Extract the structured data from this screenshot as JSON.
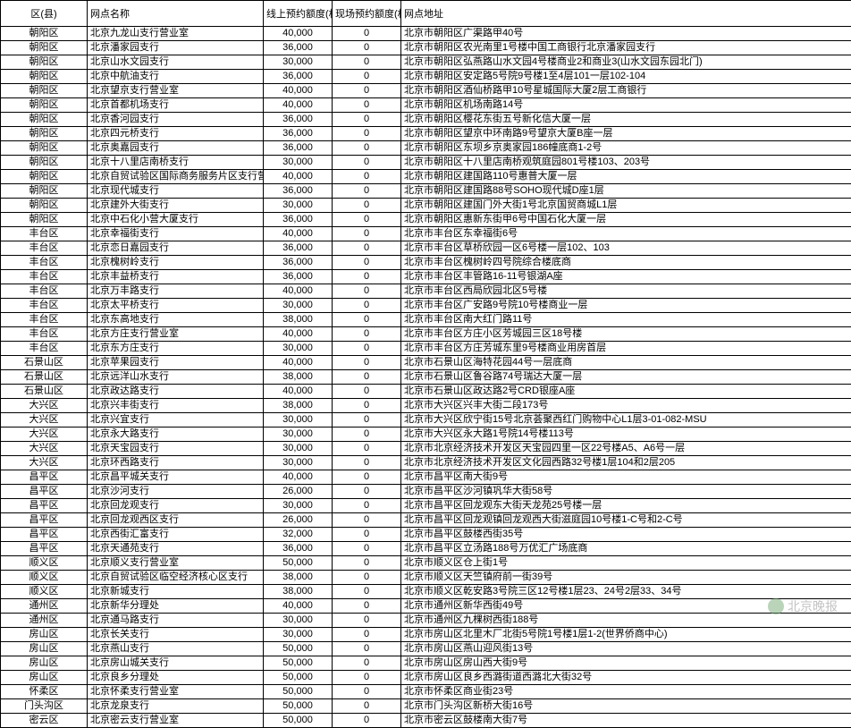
{
  "headers": {
    "district": "区(县)",
    "branch": "网点名称",
    "online": "线上预约额度(枚)",
    "onsite": "现场预约额度(枚)",
    "address": "网点地址"
  },
  "watermark": "北京晚报",
  "rows": [
    {
      "d": "朝阳区",
      "b": "北京九龙山支行营业室",
      "o": "40,000",
      "s": "0",
      "a": "北京市朝阳区广渠路甲40号"
    },
    {
      "d": "朝阳区",
      "b": "北京潘家园支行",
      "o": "36,000",
      "s": "0",
      "a": "北京市朝阳区农光南里1号楼中国工商银行北京潘家园支行"
    },
    {
      "d": "朝阳区",
      "b": "北京山水文园支行",
      "o": "30,000",
      "s": "0",
      "a": "北京市朝阳区弘燕路山水文园4号楼商业2和商业3(山水文园东园北门)"
    },
    {
      "d": "朝阳区",
      "b": "北京中航油支行",
      "o": "36,000",
      "s": "0",
      "a": "北京市朝阳区安定路5号院9号楼1至4层101一层102-104"
    },
    {
      "d": "朝阳区",
      "b": "北京望京支行营业室",
      "o": "40,000",
      "s": "0",
      "a": "北京市朝阳区酒仙桥路甲10号星城国际大厦2层工商银行"
    },
    {
      "d": "朝阳区",
      "b": "北京首都机场支行",
      "o": "40,000",
      "s": "0",
      "a": "北京市朝阳区机场南路14号"
    },
    {
      "d": "朝阳区",
      "b": "北京香河园支行",
      "o": "36,000",
      "s": "0",
      "a": "北京市朝阳区樱花东街五号新化信大厦一层"
    },
    {
      "d": "朝阳区",
      "b": "北京四元桥支行",
      "o": "36,000",
      "s": "0",
      "a": "北京市朝阳区望京中环南路9号望京大厦B座一层"
    },
    {
      "d": "朝阳区",
      "b": "北京奥嘉园支行",
      "o": "36,000",
      "s": "0",
      "a": "北京市朝阳区东坝乡京奥家园186幢底商1-2号"
    },
    {
      "d": "朝阳区",
      "b": "北京十八里店南桥支行",
      "o": "30,000",
      "s": "0",
      "a": "北京市朝阳区十八里店南桥观筑庭园801号楼103、203号"
    },
    {
      "d": "朝阳区",
      "b": "北京自贸试验区国际商务服务片区支行营业室",
      "o": "40,000",
      "s": "0",
      "a": "北京市朝阳区建国路110号惠普大厦一层"
    },
    {
      "d": "朝阳区",
      "b": "北京现代城支行",
      "o": "36,000",
      "s": "0",
      "a": "北京市朝阳区建国路88号SOHO现代城D座1层"
    },
    {
      "d": "朝阳区",
      "b": "北京建外大街支行",
      "o": "30,000",
      "s": "0",
      "a": "北京市朝阳区建国门外大街1号北京国贸商城L1层"
    },
    {
      "d": "朝阳区",
      "b": "北京中石化小营大厦支行",
      "o": "36,000",
      "s": "0",
      "a": "北京市朝阳区惠新东街甲6号中国石化大厦一层"
    },
    {
      "d": "丰台区",
      "b": "北京幸福街支行",
      "o": "40,000",
      "s": "0",
      "a": "北京市丰台区东幸福街6号"
    },
    {
      "d": "丰台区",
      "b": "北京恋日嘉园支行",
      "o": "36,000",
      "s": "0",
      "a": "北京市丰台区草桥欣园一区6号楼一层102、103"
    },
    {
      "d": "丰台区",
      "b": "北京槐树岭支行",
      "o": "36,000",
      "s": "0",
      "a": "北京市丰台区槐树岭四号院综合楼底商"
    },
    {
      "d": "丰台区",
      "b": "北京丰益桥支行",
      "o": "36,000",
      "s": "0",
      "a": "北京市丰台区丰管路16-11号银湖A座"
    },
    {
      "d": "丰台区",
      "b": "北京万丰路支行",
      "o": "40,000",
      "s": "0",
      "a": "北京市丰台区西局欣园北区5号楼"
    },
    {
      "d": "丰台区",
      "b": "北京太平桥支行",
      "o": "30,000",
      "s": "0",
      "a": "北京市丰台区广安路9号院10号楼商业一层"
    },
    {
      "d": "丰台区",
      "b": "北京东高地支行",
      "o": "38,000",
      "s": "0",
      "a": "北京市丰台区南大红门路11号"
    },
    {
      "d": "丰台区",
      "b": "北京方庄支行营业室",
      "o": "40,000",
      "s": "0",
      "a": "北京市丰台区方庄小区芳城园三区18号楼"
    },
    {
      "d": "丰台区",
      "b": "北京东方庄支行",
      "o": "30,000",
      "s": "0",
      "a": "北京市丰台区方庄芳城东里9号楼商业用房首层"
    },
    {
      "d": "石景山区",
      "b": "北京苹果园支行",
      "o": "40,000",
      "s": "0",
      "a": "北京市石景山区海特花园44号一层底商"
    },
    {
      "d": "石景山区",
      "b": "北京远洋山水支行",
      "o": "38,000",
      "s": "0",
      "a": "北京市石景山区鲁谷路74号瑞达大厦一层"
    },
    {
      "d": "石景山区",
      "b": "北京政达路支行",
      "o": "40,000",
      "s": "0",
      "a": "北京市石景山区政达路2号CRD银座A座"
    },
    {
      "d": "大兴区",
      "b": "北京兴丰街支行",
      "o": "38,000",
      "s": "0",
      "a": "北京市大兴区兴丰大街二段173号"
    },
    {
      "d": "大兴区",
      "b": "北京兴宜支行",
      "o": "30,000",
      "s": "0",
      "a": "北京市大兴区欣宁街15号北京荟聚西红门购物中心L1层3-01-082-MSU"
    },
    {
      "d": "大兴区",
      "b": "北京永大路支行",
      "o": "30,000",
      "s": "0",
      "a": "北京市大兴区永大路1号院14号楼113号"
    },
    {
      "d": "大兴区",
      "b": "北京天宝园支行",
      "o": "30,000",
      "s": "0",
      "a": "北京市北京经济技术开发区天宝园四里一区22号楼A5、A6号一层"
    },
    {
      "d": "大兴区",
      "b": "北京环西路支行",
      "o": "30,000",
      "s": "0",
      "a": "北京市北京经济技术开发区文化园西路32号楼1层104和2层205"
    },
    {
      "d": "昌平区",
      "b": "北京昌平城关支行",
      "o": "40,000",
      "s": "0",
      "a": "北京市昌平区南大街9号"
    },
    {
      "d": "昌平区",
      "b": "北京沙河支行",
      "o": "26,000",
      "s": "0",
      "a": "北京市昌平区沙河镇巩华大街58号"
    },
    {
      "d": "昌平区",
      "b": "北京回龙观支行",
      "o": "30,000",
      "s": "0",
      "a": "北京市昌平区回龙观东大街天龙苑25号楼一层"
    },
    {
      "d": "昌平区",
      "b": "北京回龙观西区支行",
      "o": "26,000",
      "s": "0",
      "a": "北京市昌平区回龙观镇回龙观西大街滋庭园10号楼1-C号和2-C号"
    },
    {
      "d": "昌平区",
      "b": "北京西街汇富支行",
      "o": "32,000",
      "s": "0",
      "a": "北京市昌平区鼓楼西街35号"
    },
    {
      "d": "昌平区",
      "b": "北京天通苑支行",
      "o": "36,000",
      "s": "0",
      "a": "北京市昌平区立汤路188号万优汇广场底商"
    },
    {
      "d": "顺义区",
      "b": "北京顺义支行营业室",
      "o": "50,000",
      "s": "0",
      "a": "北京市顺义区仓上街1号"
    },
    {
      "d": "顺义区",
      "b": "北京自贸试验区临空经济核心区支行",
      "o": "38,000",
      "s": "0",
      "a": "北京市顺义区天竺镇府前一街39号"
    },
    {
      "d": "顺义区",
      "b": "北京新城支行",
      "o": "38,000",
      "s": "0",
      "a": "北京市顺义区乾安路3号院三区12号楼1层23、24号2层33、34号"
    },
    {
      "d": "通州区",
      "b": "北京新华分理处",
      "o": "40,000",
      "s": "0",
      "a": "北京市通州区新华西街49号"
    },
    {
      "d": "通州区",
      "b": "北京通马路支行",
      "o": "30,000",
      "s": "0",
      "a": "北京市通州区九棵树西街188号"
    },
    {
      "d": "房山区",
      "b": "北京长关支行",
      "o": "30,000",
      "s": "0",
      "a": "北京市房山区北里木厂北街5号院1号楼1层1-2(世界侨商中心)"
    },
    {
      "d": "房山区",
      "b": "北京燕山支行",
      "o": "50,000",
      "s": "0",
      "a": "北京市房山区燕山迎风街13号"
    },
    {
      "d": "房山区",
      "b": "北京房山城关支行",
      "o": "50,000",
      "s": "0",
      "a": "北京市房山区房山西大街9号"
    },
    {
      "d": "房山区",
      "b": "北京良乡分理处",
      "o": "50,000",
      "s": "0",
      "a": "北京市房山区良乡西潞街道西潞北大街32号"
    },
    {
      "d": "怀柔区",
      "b": "北京怀柔支行营业室",
      "o": "50,000",
      "s": "0",
      "a": "北京市怀柔区商业街23号"
    },
    {
      "d": "门头沟区",
      "b": "北京龙泉支行",
      "o": "50,000",
      "s": "0",
      "a": "北京市门头沟区新桥大街16号"
    },
    {
      "d": "密云区",
      "b": "北京密云支行营业室",
      "o": "50,000",
      "s": "0",
      "a": "北京市密云区鼓楼南大街7号"
    }
  ]
}
